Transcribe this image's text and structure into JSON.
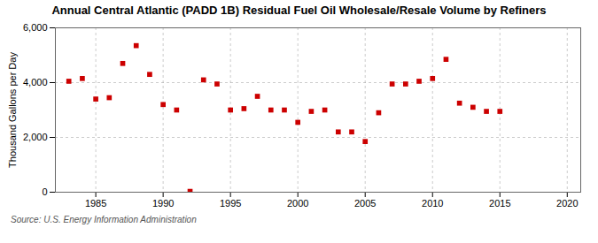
{
  "chart_data": {
    "type": "scatter",
    "title": "Annual Central Atlantic (PADD 1B) Residual Fuel Oil Wholesale/Resale Volume by Refiners",
    "ylabel": "Thousand Gallons per Day",
    "source": "Source: U.S. Energy Information Administration",
    "x": [
      1983,
      1984,
      1985,
      1986,
      1987,
      1988,
      1989,
      1990,
      1991,
      1992,
      1993,
      1994,
      1995,
      1996,
      1997,
      1998,
      1999,
      2000,
      2001,
      2002,
      2003,
      2004,
      2005,
      2006,
      2007,
      2008,
      2009,
      2010,
      2011,
      2012,
      2013,
      2014,
      2015
    ],
    "values": [
      4050,
      4150,
      3400,
      3450,
      4700,
      5350,
      4300,
      3200,
      3000,
      30,
      4100,
      3950,
      3000,
      3050,
      3500,
      3000,
      3000,
      2550,
      2950,
      3000,
      2200,
      2200,
      1850,
      2900,
      3950,
      3950,
      4050,
      4150,
      4850,
      3250,
      3100,
      2950,
      2950
    ],
    "color": "#cc0000",
    "marker": "square",
    "xlim": [
      1982,
      2021
    ],
    "xticks": [
      1985,
      1990,
      1995,
      2000,
      2005,
      2010,
      2015,
      2020
    ],
    "ylim": [
      0,
      6000
    ],
    "yticks": [
      0,
      {
        "value": 2000,
        "label": "2,000"
      },
      {
        "value": 4000,
        "label": "4,000"
      },
      {
        "value": 6000,
        "label": "6,000"
      }
    ],
    "grid": true
  }
}
